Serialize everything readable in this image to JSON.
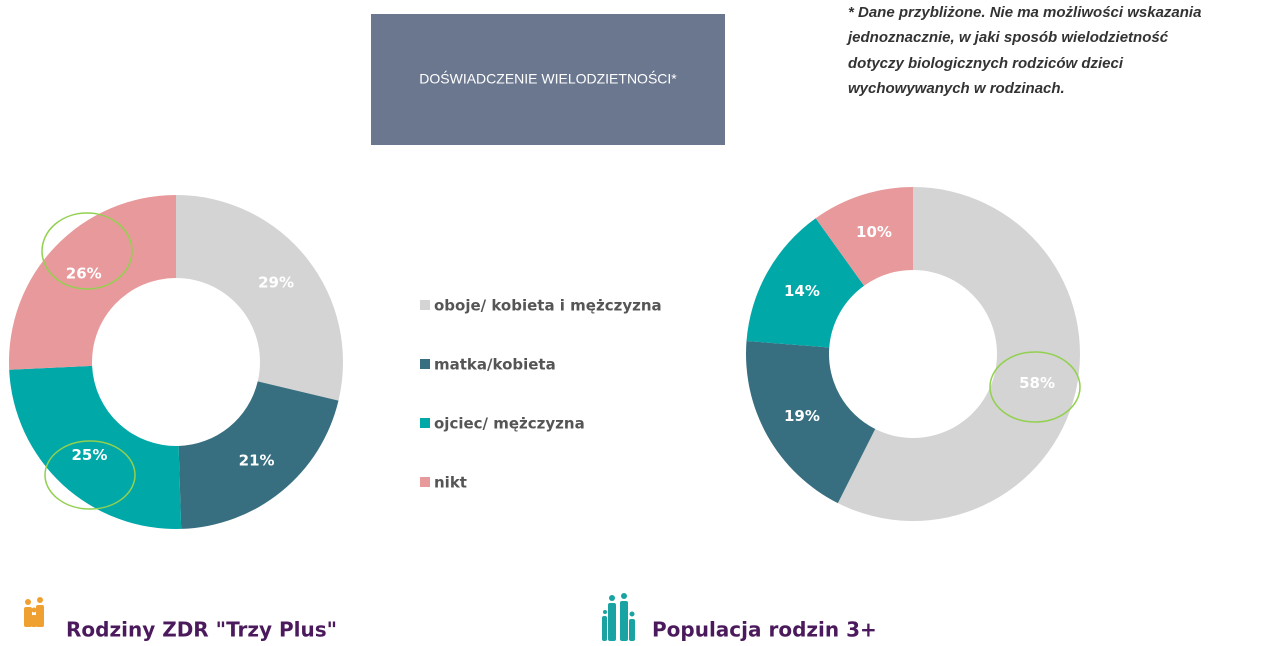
{
  "title": "DOŚWIADCZENIE WIELODZIETNOŚCI*",
  "note": [
    "* Dane przybliżone. Nie ma możliwości wskazania",
    "jednoznacznie, w jaki sposób wielodzietność",
    "dotyczy biologicznych rodziców dzieci",
    "wychowywanych w rodzinach."
  ],
  "chart_data": [
    {
      "type": "pie",
      "title": "Rodziny ZDR \"Trzy Plus\"",
      "categories": [
        "oboje/ kobieta i mężczyzna",
        "matka/kobieta",
        "ojciec/ mężczyzna",
        "nikt"
      ],
      "colors": [
        "#d4d4d4",
        "#376f80",
        "#00a8a8",
        "#e8999b"
      ],
      "values": [
        29,
        21,
        25,
        26
      ],
      "value_labels": [
        "29%",
        "21%",
        "25%",
        "26%"
      ]
    },
    {
      "type": "pie",
      "title": "Populacja rodzin 3+",
      "colors": [
        "#d4d4d4",
        "#376f80",
        "#00a8a8",
        "#e8999b"
      ],
      "values": [
        58,
        19,
        14,
        10
      ],
      "value_labels": [
        "58%",
        "19%",
        "14%",
        "10%"
      ]
    }
  ]
}
